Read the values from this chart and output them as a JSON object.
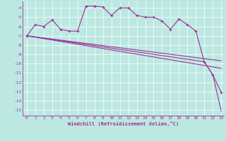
{
  "xlabel": "Windchill (Refroidissement éolien,°C)",
  "background_color": "#bde8e2",
  "grid_color": "#ffffff",
  "line_color": "#993399",
  "xlim": [
    -0.5,
    23.3
  ],
  "ylim": [
    -15.6,
    -3.3
  ],
  "yticks": [
    -4,
    -5,
    -6,
    -7,
    -8,
    -9,
    -10,
    -11,
    -12,
    -13,
    -14,
    -15
  ],
  "xticks": [
    0,
    1,
    2,
    3,
    4,
    5,
    6,
    7,
    8,
    9,
    10,
    11,
    12,
    13,
    14,
    15,
    16,
    17,
    18,
    19,
    20,
    21,
    22,
    23
  ],
  "series1_x": [
    0,
    1,
    2,
    3,
    4,
    5,
    6,
    7,
    8,
    9,
    10,
    11,
    12,
    13,
    14,
    15,
    16,
    17,
    18,
    19,
    20,
    21,
    22,
    23
  ],
  "series1_y": [
    -7.0,
    -5.8,
    -6.0,
    -5.3,
    -6.3,
    -6.5,
    -6.5,
    -3.8,
    -3.8,
    -3.9,
    -4.8,
    -4.0,
    -4.0,
    -4.8,
    -5.0,
    -5.0,
    -5.4,
    -6.3,
    -5.2,
    -5.8,
    -6.5,
    -9.8,
    -11.2,
    -13.1
  ],
  "series2_x": [
    0,
    23
  ],
  "series2_y": [
    -7.0,
    -9.7
  ],
  "series3_x": [
    0,
    23
  ],
  "series3_y": [
    -7.0,
    -10.5
  ],
  "series4_x": [
    0,
    21,
    22,
    23
  ],
  "series4_y": [
    -7.0,
    -9.8,
    -11.2,
    -15.1
  ]
}
